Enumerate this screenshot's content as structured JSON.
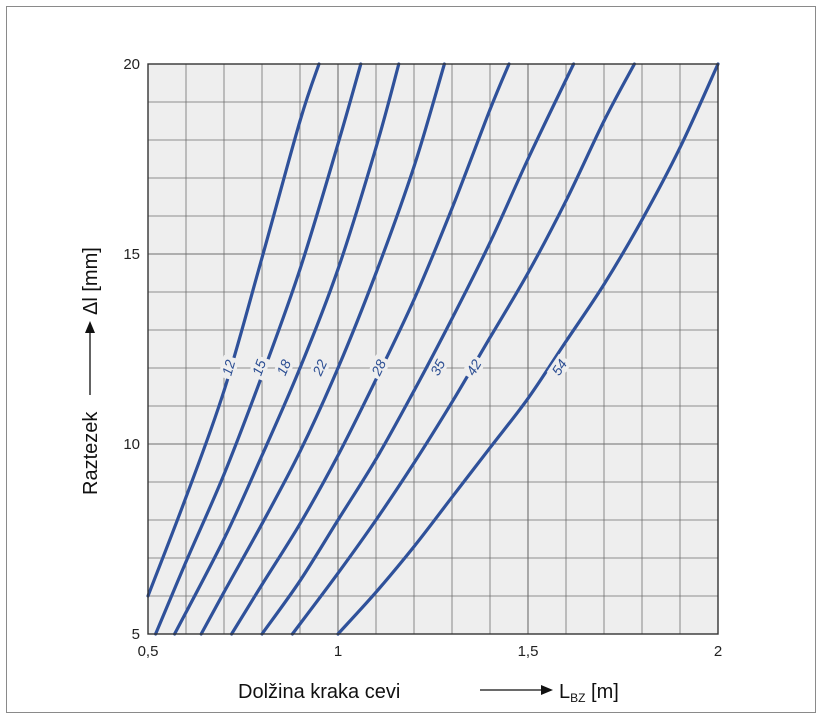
{
  "chart_data": {
    "type": "line",
    "xlabel": "Dolžina kraka cevi",
    "xunit_main": "L",
    "xunit_sub": "BZ",
    "xunit_tail": " [m]",
    "ylabel": "Raztezek",
    "yunit": "Δl [mm]",
    "xlim": [
      0.5,
      2.0
    ],
    "ylim": [
      5,
      20
    ],
    "grid": true,
    "x_ticks": [
      {
        "value": 0.5,
        "label": "0,5"
      },
      {
        "value": 1.0,
        "label": "1"
      },
      {
        "value": 1.5,
        "label": "1,5"
      },
      {
        "value": 2.0,
        "label": "2"
      }
    ],
    "y_ticks": [
      {
        "value": 5,
        "label": "5"
      },
      {
        "value": 10,
        "label": "10"
      },
      {
        "value": 15,
        "label": "15"
      },
      {
        "value": 20,
        "label": "20"
      }
    ],
    "series": [
      {
        "name": "12",
        "x": [
          0.5,
          0.6,
          0.7,
          0.8,
          0.9,
          0.95
        ],
        "y": [
          6.0,
          8.6,
          11.4,
          14.9,
          18.5,
          20.0
        ],
        "label_at": [
          0.715,
          12.0
        ]
      },
      {
        "name": "15",
        "x": [
          0.52,
          0.6,
          0.7,
          0.8,
          0.9,
          1.0,
          1.06
        ],
        "y": [
          5.0,
          6.9,
          9.2,
          11.8,
          14.6,
          17.9,
          20.0
        ],
        "label_at": [
          0.795,
          12.0
        ]
      },
      {
        "name": "18",
        "x": [
          0.57,
          0.7,
          0.8,
          0.9,
          1.0,
          1.1,
          1.16
        ],
        "y": [
          5.0,
          7.5,
          9.7,
          12.0,
          14.6,
          17.8,
          20.0
        ],
        "label_at": [
          0.86,
          12.0
        ]
      },
      {
        "name": "22",
        "x": [
          0.64,
          0.7,
          0.8,
          0.9,
          1.0,
          1.1,
          1.2,
          1.28
        ],
        "y": [
          5.0,
          6.1,
          7.9,
          9.8,
          12.0,
          14.5,
          17.3,
          20.0
        ],
        "label_at": [
          0.955,
          12.0
        ]
      },
      {
        "name": "28",
        "x": [
          0.72,
          0.8,
          0.9,
          1.0,
          1.1,
          1.2,
          1.3,
          1.4,
          1.45
        ],
        "y": [
          5.0,
          6.3,
          7.9,
          9.7,
          11.7,
          13.8,
          16.2,
          18.8,
          20.0
        ],
        "label_at": [
          1.11,
          12.0
        ]
      },
      {
        "name": "35",
        "x": [
          0.8,
          0.9,
          1.0,
          1.1,
          1.2,
          1.3,
          1.4,
          1.5,
          1.62
        ],
        "y": [
          5.0,
          6.4,
          8.0,
          9.6,
          11.4,
          13.3,
          15.3,
          17.5,
          20.0
        ],
        "label_at": [
          1.265,
          12.0
        ]
      },
      {
        "name": "42",
        "x": [
          0.88,
          1.0,
          1.1,
          1.2,
          1.3,
          1.4,
          1.5,
          1.6,
          1.7,
          1.78
        ],
        "y": [
          5.0,
          6.6,
          8.0,
          9.5,
          11.1,
          12.8,
          14.5,
          16.4,
          18.5,
          20.0
        ],
        "label_at": [
          1.36,
          12.0
        ]
      },
      {
        "name": "54",
        "x": [
          1.0,
          1.1,
          1.2,
          1.3,
          1.4,
          1.5,
          1.6,
          1.7,
          1.8,
          1.9,
          2.0
        ],
        "y": [
          5.0,
          6.1,
          7.3,
          8.6,
          9.9,
          11.2,
          12.7,
          14.2,
          15.9,
          17.8,
          20.0
        ],
        "label_at": [
          1.585,
          12.0
        ]
      }
    ],
    "colors": {
      "line": "#2f519a",
      "grid": "#6e6e6e",
      "plot_bg": "#eeeeee",
      "curve_label": "#2d4f93"
    }
  }
}
